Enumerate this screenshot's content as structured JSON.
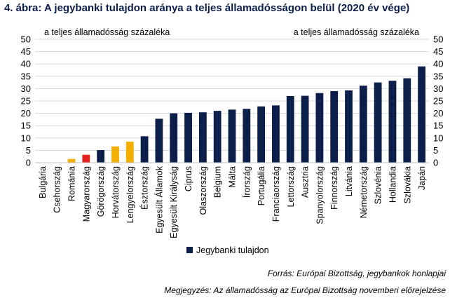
{
  "chart_data": {
    "type": "bar",
    "title": "4. ábra: A jegybanki tulajdon aránya a teljes államadósságon belül (2020 év vége)",
    "ylabel_left": "a teljes államadósság százaléka",
    "ylabel_right": "a teljes államadósság százaléka",
    "ylim": [
      0,
      50
    ],
    "yticks": [
      0,
      5,
      10,
      15,
      20,
      25,
      30,
      35,
      40,
      45,
      50
    ],
    "grid": true,
    "legend_position": "bottom",
    "series": [
      {
        "name": "Jegybanki tulajdon",
        "color": "#0c1f4a",
        "categories": [
          "Bulgária",
          "Csehország",
          "Románia",
          "Magyarország",
          "Görögország",
          "Horvátország",
          "Lengyelország",
          "Észtország",
          "Egyesült Államok",
          "Egyesült Királyság",
          "Ciprus",
          "Olaszország",
          "Belgium",
          "Málta",
          "Írország",
          "Portugália",
          "Franciaország",
          "Lettország",
          "Ausztria",
          "Spanyolország",
          "Finnország",
          "Litvánia",
          "Németország",
          "Szlovénia",
          "Hollandia",
          "Szlovákia",
          "Japán"
        ],
        "values": [
          0,
          0,
          1.5,
          3.2,
          5.1,
          6.6,
          8.5,
          10.7,
          17.8,
          20.0,
          20.2,
          20.4,
          21.0,
          21.5,
          21.8,
          22.8,
          23.2,
          27.0,
          27.1,
          28.2,
          29.0,
          29.3,
          31.2,
          32.5,
          33.2,
          34.2,
          39.0
        ]
      }
    ],
    "bar_colors": [
      "#0c1f4a",
      "#0c1f4a",
      "#f4b000",
      "#e3211c",
      "#0c1f4a",
      "#f4b000",
      "#f4b000",
      "#0c1f4a",
      "#0c1f4a",
      "#0c1f4a",
      "#0c1f4a",
      "#0c1f4a",
      "#0c1f4a",
      "#0c1f4a",
      "#0c1f4a",
      "#0c1f4a",
      "#0c1f4a",
      "#0c1f4a",
      "#0c1f4a",
      "#0c1f4a",
      "#0c1f4a",
      "#0c1f4a",
      "#0c1f4a",
      "#0c1f4a",
      "#0c1f4a",
      "#0c1f4a",
      "#0c1f4a"
    ]
  },
  "notes": {
    "source": "Forrás: Európai Bizottság, jegybankok honlapjai",
    "footnote": "Megjegyzés: Az államadósság az Európai Bizottság novemberi előrejelzése"
  }
}
